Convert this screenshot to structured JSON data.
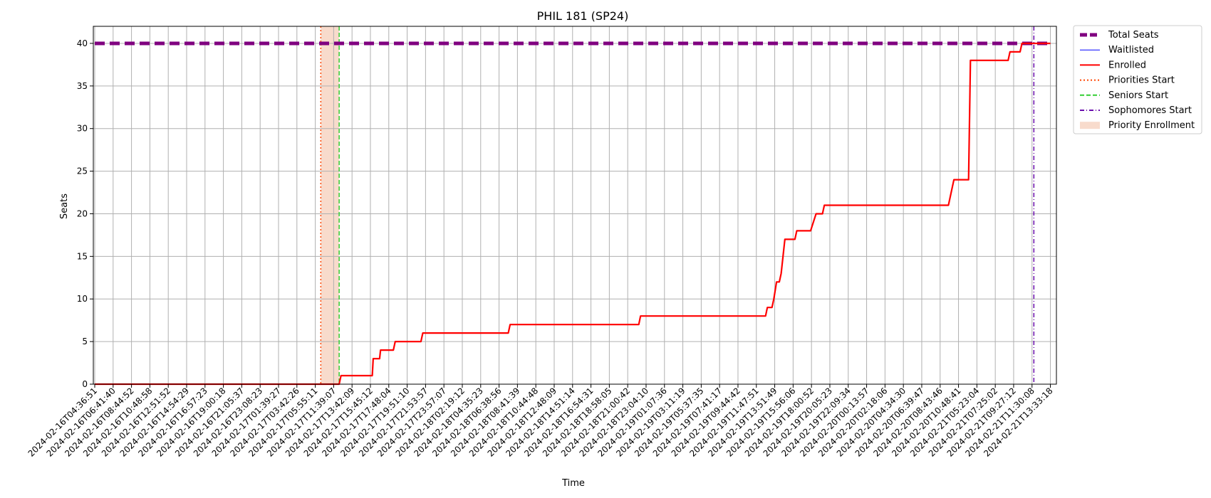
{
  "chart_data": {
    "type": "line",
    "title": "PHIL 181 (SP24)",
    "xlabel": "Time",
    "ylabel": "Seats",
    "ylim": [
      0,
      42
    ],
    "yticks": [
      0,
      5,
      10,
      15,
      20,
      25,
      30,
      35,
      40
    ],
    "grid": true,
    "legend_position": "outside top-right",
    "x_ticks": [
      "2024-02-16T04:36:51",
      "2024-02-16T06:41:40",
      "2024-02-16T08:44:52",
      "2024-02-16T10:48:58",
      "2024-02-16T12:51:52",
      "2024-02-16T14:54:29",
      "2024-02-16T16:57:23",
      "2024-02-16T19:00:18",
      "2024-02-16T21:05:37",
      "2024-02-16T23:08:23",
      "2024-02-17T01:39:27",
      "2024-02-17T03:42:26",
      "2024-02-17T05:55:11",
      "2024-02-17T11:39:07",
      "2024-02-17T13:42:09",
      "2024-02-17T15:45:12",
      "2024-02-17T17:48:04",
      "2024-02-17T19:51:10",
      "2024-02-17T21:53:57",
      "2024-02-17T23:57:07",
      "2024-02-18T02:19:12",
      "2024-02-18T04:35:23",
      "2024-02-18T06:38:56",
      "2024-02-18T08:41:39",
      "2024-02-18T10:44:48",
      "2024-02-18T12:48:09",
      "2024-02-18T14:51:14",
      "2024-02-18T16:54:31",
      "2024-02-18T18:58:05",
      "2024-02-18T21:00:42",
      "2024-02-18T23:04:10",
      "2024-02-19T01:07:36",
      "2024-02-19T03:11:19",
      "2024-02-19T05:37:35",
      "2024-02-19T07:41:17",
      "2024-02-19T09:44:42",
      "2024-02-19T11:47:51",
      "2024-02-19T13:51:49",
      "2024-02-19T15:56:06",
      "2024-02-19T18:00:52",
      "2024-02-19T20:05:23",
      "2024-02-19T22:09:34",
      "2024-02-20T00:13:57",
      "2024-02-20T02:18:06",
      "2024-02-20T04:34:30",
      "2024-02-20T06:39:47",
      "2024-02-20T08:43:46",
      "2024-02-20T10:48:41",
      "2024-02-21T05:23:04",
      "2024-02-21T07:25:02",
      "2024-02-21T09:27:12",
      "2024-02-21T11:30:08",
      "2024-02-21T13:33:18"
    ],
    "series": [
      {
        "name": "Total Seats",
        "color": "#800080",
        "style": "thick-dashed",
        "points": [
          [
            0,
            40
          ],
          [
            52,
            40
          ]
        ]
      },
      {
        "name": "Waitlisted",
        "color": "#0000ff",
        "style": "solid-thin",
        "points": []
      },
      {
        "name": "Enrolled",
        "color": "#ff0000",
        "style": "solid",
        "points": [
          [
            0,
            0
          ],
          [
            13.3,
            0
          ],
          [
            13.4,
            1
          ],
          [
            15.1,
            1
          ],
          [
            15.15,
            3
          ],
          [
            15.5,
            3
          ],
          [
            15.55,
            4
          ],
          [
            16.25,
            4
          ],
          [
            16.35,
            5
          ],
          [
            17.75,
            5
          ],
          [
            17.85,
            6
          ],
          [
            22.5,
            6
          ],
          [
            22.6,
            7
          ],
          [
            29.6,
            7
          ],
          [
            29.7,
            8
          ],
          [
            36.5,
            8
          ],
          [
            36.6,
            9
          ],
          [
            36.85,
            9
          ],
          [
            36.95,
            10
          ],
          [
            37.1,
            12
          ],
          [
            37.25,
            12
          ],
          [
            37.35,
            13
          ],
          [
            37.55,
            17
          ],
          [
            38.1,
            17
          ],
          [
            38.2,
            18
          ],
          [
            38.95,
            18
          ],
          [
            39.25,
            20
          ],
          [
            39.6,
            20
          ],
          [
            39.7,
            21
          ],
          [
            46.45,
            21
          ],
          [
            46.75,
            24
          ],
          [
            47.55,
            24
          ],
          [
            47.65,
            38
          ],
          [
            49.7,
            38
          ],
          [
            49.8,
            39
          ],
          [
            50.35,
            39
          ],
          [
            50.45,
            40
          ],
          [
            52,
            40
          ]
        ]
      }
    ],
    "vertical_lines": [
      {
        "name": "Priorities Start",
        "x": 12.3,
        "color": "#ff4500",
        "style": "dotted"
      },
      {
        "name": "Seniors Start",
        "x": 13.3,
        "color": "#32cd32",
        "style": "dashed"
      },
      {
        "name": "Sophomores Start",
        "x": 51.1,
        "color": "#6a0dad",
        "style": "dash-dot"
      }
    ],
    "shaded_regions": [
      {
        "name": "Priority Enrollment",
        "x_start": 12.3,
        "x_end": 13.3,
        "color": "#f4c7b0"
      }
    ],
    "legend": [
      "Total Seats",
      "Waitlisted",
      "Enrolled",
      "Priorities Start",
      "Seniors Start",
      "Sophomores Start",
      "Priority Enrollment"
    ]
  }
}
